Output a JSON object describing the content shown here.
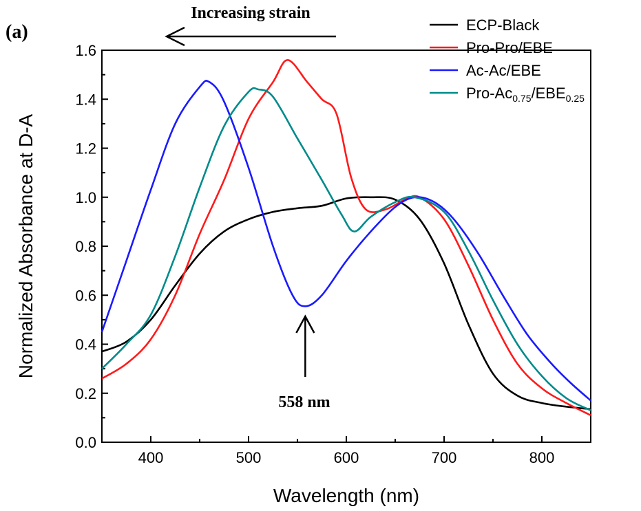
{
  "panel_label": "(a)",
  "chart_data": {
    "type": "line",
    "xlabel": "Wavelength (nm)",
    "ylabel": "Normalized Absorbance at D-A",
    "xlim": [
      350,
      850
    ],
    "ylim": [
      0.0,
      1.6
    ],
    "x_ticks": [
      "400",
      "500",
      "600",
      "700",
      "800"
    ],
    "y_ticks": [
      "0.0",
      "0.2",
      "0.4",
      "0.6",
      "0.8",
      "1.0",
      "1.2",
      "1.4",
      "1.6"
    ],
    "legend_position": "top-right",
    "series": [
      {
        "name": "ECP-Black",
        "color": "#000000",
        "points": [
          [
            350,
            0.37
          ],
          [
            375,
            0.41
          ],
          [
            400,
            0.5
          ],
          [
            425,
            0.64
          ],
          [
            450,
            0.77
          ],
          [
            475,
            0.86
          ],
          [
            500,
            0.91
          ],
          [
            525,
            0.94
          ],
          [
            550,
            0.955
          ],
          [
            575,
            0.965
          ],
          [
            600,
            0.995
          ],
          [
            625,
            1.0
          ],
          [
            650,
            0.99
          ],
          [
            675,
            0.91
          ],
          [
            700,
            0.73
          ],
          [
            725,
            0.48
          ],
          [
            750,
            0.28
          ],
          [
            775,
            0.19
          ],
          [
            800,
            0.16
          ],
          [
            825,
            0.145
          ],
          [
            850,
            0.135
          ]
        ]
      },
      {
        "name": "Pro-Pro/EBE",
        "color": "#ff1a1a",
        "points": [
          [
            350,
            0.26
          ],
          [
            375,
            0.32
          ],
          [
            400,
            0.42
          ],
          [
            425,
            0.6
          ],
          [
            450,
            0.85
          ],
          [
            475,
            1.07
          ],
          [
            500,
            1.32
          ],
          [
            525,
            1.47
          ],
          [
            540,
            1.56
          ],
          [
            560,
            1.47
          ],
          [
            575,
            1.4
          ],
          [
            590,
            1.34
          ],
          [
            605,
            1.08
          ],
          [
            620,
            0.95
          ],
          [
            640,
            0.95
          ],
          [
            660,
            0.99
          ],
          [
            675,
            1.0
          ],
          [
            700,
            0.91
          ],
          [
            725,
            0.72
          ],
          [
            750,
            0.5
          ],
          [
            775,
            0.32
          ],
          [
            800,
            0.22
          ],
          [
            825,
            0.16
          ],
          [
            850,
            0.11
          ]
        ]
      },
      {
        "name": "Ac-Ac/EBE",
        "color": "#1a1aff",
        "points": [
          [
            350,
            0.45
          ],
          [
            375,
            0.74
          ],
          [
            400,
            1.03
          ],
          [
            425,
            1.3
          ],
          [
            450,
            1.45
          ],
          [
            460,
            1.47
          ],
          [
            475,
            1.39
          ],
          [
            500,
            1.12
          ],
          [
            525,
            0.8
          ],
          [
            545,
            0.6
          ],
          [
            558,
            0.555
          ],
          [
            575,
            0.6
          ],
          [
            600,
            0.74
          ],
          [
            625,
            0.86
          ],
          [
            650,
            0.96
          ],
          [
            670,
            1.0
          ],
          [
            690,
            0.98
          ],
          [
            710,
            0.91
          ],
          [
            735,
            0.77
          ],
          [
            760,
            0.6
          ],
          [
            785,
            0.44
          ],
          [
            810,
            0.32
          ],
          [
            830,
            0.24
          ],
          [
            850,
            0.17
          ]
        ]
      },
      {
        "name": "Pro-Ac0.75/EBE0.25",
        "name_parts": [
          "Pro-Ac",
          "0.75",
          "/EBE",
          "0.25"
        ],
        "color": "#008b8b",
        "points": [
          [
            350,
            0.3
          ],
          [
            375,
            0.4
          ],
          [
            400,
            0.52
          ],
          [
            425,
            0.76
          ],
          [
            450,
            1.04
          ],
          [
            475,
            1.29
          ],
          [
            500,
            1.43
          ],
          [
            510,
            1.44
          ],
          [
            525,
            1.41
          ],
          [
            550,
            1.24
          ],
          [
            575,
            1.07
          ],
          [
            595,
            0.93
          ],
          [
            608,
            0.86
          ],
          [
            625,
            0.92
          ],
          [
            650,
            0.98
          ],
          [
            670,
            1.0
          ],
          [
            700,
            0.94
          ],
          [
            725,
            0.78
          ],
          [
            750,
            0.58
          ],
          [
            775,
            0.4
          ],
          [
            800,
            0.27
          ],
          [
            825,
            0.18
          ],
          [
            850,
            0.13
          ]
        ]
      }
    ],
    "annotations": {
      "arrow_top_label": "Increasing strain",
      "marker_label": "558 nm",
      "marker_x": 558
    }
  }
}
